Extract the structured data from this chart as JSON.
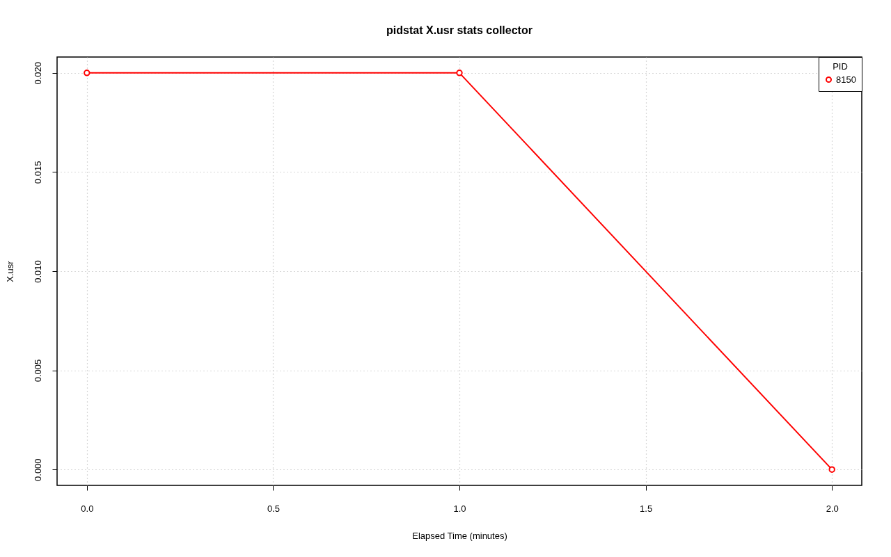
{
  "chart_data": {
    "type": "line",
    "title": "pidstat X.usr stats collector",
    "xlabel": "Elapsed Time (minutes)",
    "ylabel": "X.usr",
    "legend_title": "PID",
    "x": [
      0,
      1,
      2
    ],
    "series": [
      {
        "name": "8150",
        "color": "#ff0000",
        "values": [
          0.02,
          0.02,
          0
        ]
      }
    ],
    "xlim": [
      -0.08,
      2.08
    ],
    "ylim": [
      -0.0008,
      0.0208
    ],
    "xticks": [
      {
        "value": 0,
        "label": "0.0"
      },
      {
        "value": 0.5,
        "label": "0.5"
      },
      {
        "value": 1,
        "label": "1.0"
      },
      {
        "value": 1.5,
        "label": "1.5"
      },
      {
        "value": 2,
        "label": "2.0"
      }
    ],
    "yticks": [
      {
        "value": 0,
        "label": "0.000"
      },
      {
        "value": 0.005,
        "label": "0.005"
      },
      {
        "value": 0.01,
        "label": "0.010"
      },
      {
        "value": 0.015,
        "label": "0.015"
      },
      {
        "value": 0.02,
        "label": "0.020"
      }
    ],
    "grid": true,
    "legend": "top right",
    "marker": "circle",
    "line_style": "solid"
  }
}
